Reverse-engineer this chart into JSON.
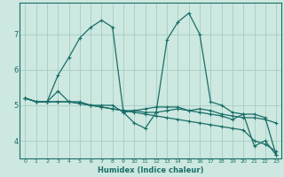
{
  "xlabel": "Humidex (Indice chaleur)",
  "ylabel": "",
  "bg_color": "#cce8e0",
  "grid_color": "#aad0c8",
  "line_color": "#1a6e68",
  "xlim": [
    -0.5,
    23.5
  ],
  "ylim": [
    3.5,
    7.9
  ],
  "yticks": [
    4,
    5,
    6,
    7
  ],
  "xticks": [
    0,
    1,
    2,
    3,
    4,
    5,
    6,
    7,
    8,
    9,
    10,
    11,
    12,
    13,
    14,
    15,
    16,
    17,
    18,
    19,
    20,
    21,
    22,
    23
  ],
  "lines": [
    {
      "x": [
        0,
        1,
        2,
        3,
        4,
        5,
        6,
        7,
        8,
        9,
        10,
        11,
        12,
        13,
        14,
        15,
        16,
        17,
        18,
        19,
        20,
        21,
        22,
        23
      ],
      "y": [
        5.2,
        5.1,
        5.1,
        5.4,
        5.1,
        5.1,
        5.0,
        5.0,
        5.0,
        4.8,
        4.85,
        4.8,
        4.8,
        4.85,
        4.9,
        4.85,
        4.9,
        4.85,
        4.75,
        4.7,
        4.65,
        4.65,
        4.6,
        4.5
      ]
    },
    {
      "x": [
        0,
        1,
        2,
        3,
        4,
        5,
        6,
        7,
        8,
        9,
        10,
        11,
        12,
        13,
        14,
        15,
        16,
        17,
        18,
        19,
        20,
        21,
        22,
        23
      ],
      "y": [
        5.2,
        5.1,
        5.1,
        5.1,
        5.1,
        5.05,
        5.0,
        4.95,
        4.9,
        4.85,
        4.8,
        4.75,
        4.7,
        4.65,
        4.6,
        4.55,
        4.5,
        4.45,
        4.4,
        4.35,
        4.3,
        4.0,
        3.9,
        3.7
      ]
    },
    {
      "x": [
        0,
        1,
        2,
        3,
        4,
        5,
        6,
        7,
        8,
        9,
        10,
        11,
        12,
        13,
        14,
        15,
        16,
        17,
        18,
        19,
        20,
        21,
        22,
        23
      ],
      "y": [
        5.2,
        5.1,
        5.1,
        5.85,
        6.35,
        6.9,
        7.2,
        7.4,
        7.2,
        4.8,
        4.5,
        4.35,
        4.8,
        6.85,
        7.35,
        7.6,
        7.0,
        5.1,
        5.0,
        4.8,
        4.75,
        3.85,
        4.0,
        3.6
      ]
    },
    {
      "x": [
        0,
        1,
        2,
        3,
        4,
        5,
        6,
        7,
        8,
        9,
        10,
        11,
        12,
        13,
        14,
        15,
        16,
        17,
        18,
        19,
        20,
        21,
        22,
        23
      ],
      "y": [
        5.2,
        5.1,
        5.1,
        5.1,
        5.1,
        5.05,
        5.0,
        4.95,
        4.9,
        4.85,
        4.85,
        4.9,
        4.95,
        4.95,
        4.95,
        4.85,
        4.8,
        4.75,
        4.7,
        4.6,
        4.75,
        4.75,
        4.65,
        3.6
      ]
    }
  ]
}
